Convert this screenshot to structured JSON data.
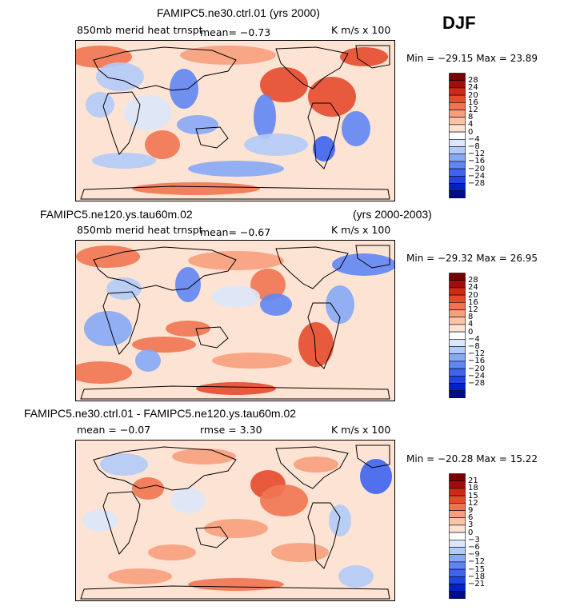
{
  "season": "DJF",
  "colors": {
    "scale": [
      "#000b8a",
      "#0022c8",
      "#1f44e4",
      "#3d63ef",
      "#5f86f3",
      "#86a9f6",
      "#b2caf8",
      "#dbe7fb",
      "#ffffff",
      "#fde3d3",
      "#fbc3a5",
      "#f79e7c",
      "#f17451",
      "#e54a2d",
      "#cc2a16",
      "#a30d09",
      "#780000"
    ],
    "land": "#000000"
  },
  "panels": [
    {
      "title": "FAMIPC5.ne30.ctrl.01 (yrs 2000)",
      "subtitle_left": "850mb merid heat trnspt",
      "mean_text": "mean=   −0.73",
      "rmse_text": "",
      "units": "K m/s x 100",
      "min_max": "Min = −29.15 Max =  23.89",
      "colorbar_labels": [
        "28",
        "24",
        "20",
        "16",
        "12",
        "8",
        "4",
        "0",
        "−4",
        "−8",
        "−12",
        "−16",
        "−20",
        "−24",
        "−28"
      ]
    },
    {
      "title": "FAMIPC5.ne120.ys.tau60m.02",
      "title_right": "(yrs 2000-2003)",
      "subtitle_left": "850mb merid heat trnspt",
      "mean_text": "mean=   −0.67",
      "rmse_text": "",
      "units": "K m/s x 100",
      "min_max": "Min = −29.32 Max =  26.95",
      "colorbar_labels": [
        "28",
        "24",
        "20",
        "16",
        "12",
        "8",
        "4",
        "0",
        "−4",
        "−8",
        "−12",
        "−16",
        "−20",
        "−24",
        "−28"
      ]
    },
    {
      "title": "FAMIPC5.ne30.ctrl.01 - FAMIPC5.ne120.ys.tau60m.02",
      "subtitle_left": "",
      "mean_text": "mean =   −0.07",
      "rmse_text": "rmse =    3.30",
      "units": "K m/s x 100",
      "min_max": "Min = −20.28 Max =  15.22",
      "colorbar_labels": [
        "21",
        "18",
        "15",
        "12",
        "9",
        "6",
        "3",
        "0",
        "−3",
        "−6",
        "−9",
        "−12",
        "−15",
        "−18",
        "−21"
      ]
    }
  ],
  "chart_data": [
    {
      "type": "heatmap",
      "title": "FAMIPC5.ne30.ctrl.01 (yrs 2000)",
      "field": "850mb merid heat trnspt",
      "units": "K m/s x 100",
      "mean": -0.73,
      "min": -29.15,
      "max": 23.89,
      "levels": [
        -28,
        -24,
        -20,
        -16,
        -12,
        -8,
        -4,
        0,
        4,
        8,
        12,
        16,
        20,
        24,
        28
      ]
    },
    {
      "type": "heatmap",
      "title": "FAMIPC5.ne120.ys.tau60m.02",
      "years": "(yrs 2000-2003)",
      "field": "850mb merid heat trnspt",
      "units": "K m/s x 100",
      "mean": -0.67,
      "min": -29.32,
      "max": 26.95,
      "levels": [
        -28,
        -24,
        -20,
        -16,
        -12,
        -8,
        -4,
        0,
        4,
        8,
        12,
        16,
        20,
        24,
        28
      ]
    },
    {
      "type": "heatmap",
      "title": "FAMIPC5.ne30.ctrl.01 - FAMIPC5.ne120.ys.tau60m.02",
      "units": "K m/s x 100",
      "mean": -0.07,
      "rmse": 3.3,
      "min": -20.28,
      "max": 15.22,
      "levels": [
        -21,
        -18,
        -15,
        -12,
        -9,
        -6,
        -3,
        0,
        3,
        6,
        9,
        12,
        15,
        18,
        21
      ]
    }
  ]
}
